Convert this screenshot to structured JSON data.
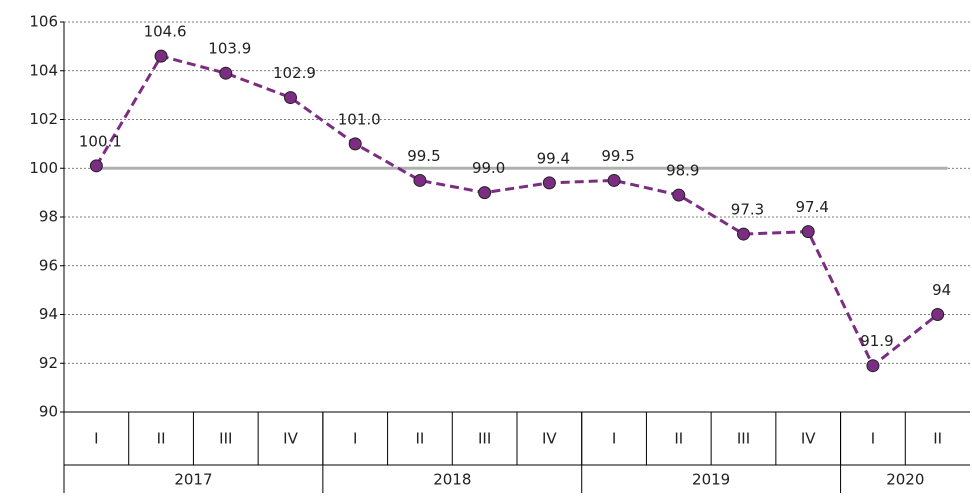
{
  "chart_data": {
    "type": "line",
    "categories": [
      "I",
      "II",
      "III",
      "IV",
      "I",
      "II",
      "III",
      "IV",
      "I",
      "II",
      "III",
      "IV",
      "I",
      "II"
    ],
    "groups": [
      {
        "name": "2017",
        "count": 4
      },
      {
        "name": "2018",
        "count": 4
      },
      {
        "name": "2019",
        "count": 4
      },
      {
        "name": "2020",
        "count": 2
      }
    ],
    "series": [
      {
        "color": "#7b2d82",
        "values": [
          100.1,
          104.6,
          103.9,
          102.9,
          101.0,
          99.5,
          99.0,
          99.4,
          99.5,
          98.9,
          97.3,
          97.4,
          91.9,
          94
        ],
        "value_labels": [
          "100.1",
          "104.6",
          "103.9",
          "102.9",
          "101.0",
          "99.5",
          "99.0",
          "99.4",
          "99.5",
          "98.9",
          "97.3",
          "97.4",
          "91.9",
          "94"
        ]
      }
    ],
    "reference_line": 100,
    "reference_color": "#b0b0b0",
    "ylim": [
      90,
      106
    ],
    "yticks": [
      90,
      92,
      94,
      96,
      98,
      100,
      102,
      104,
      106
    ],
    "grid": true
  }
}
